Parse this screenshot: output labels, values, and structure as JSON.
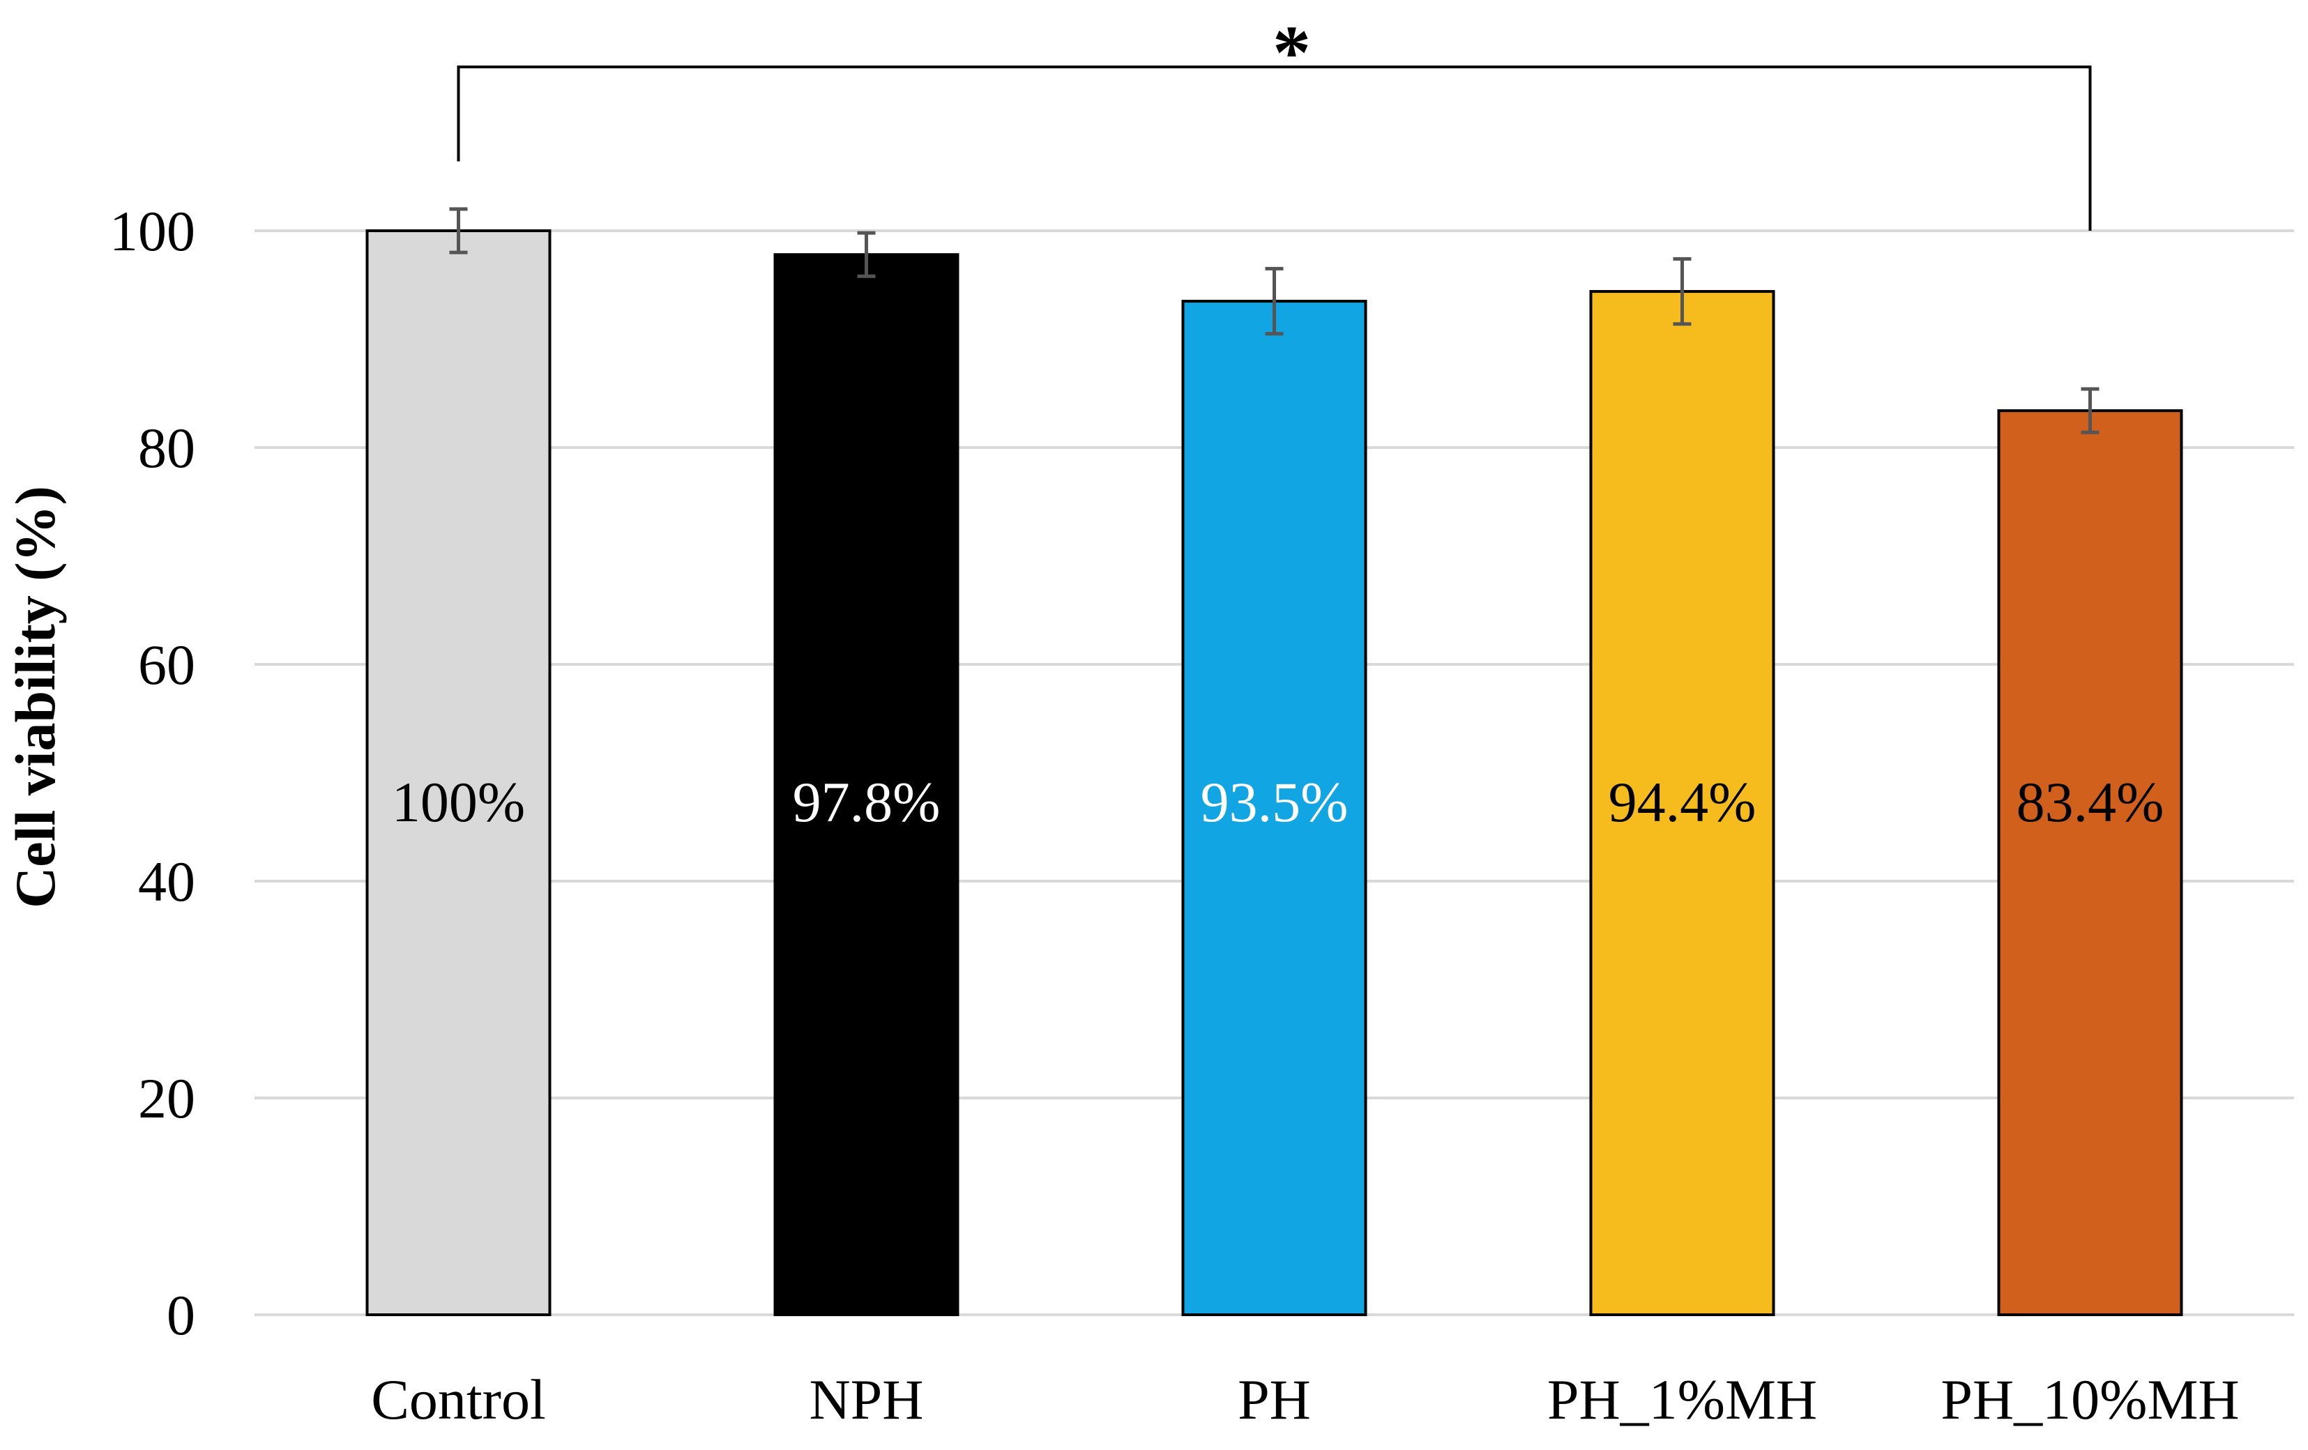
{
  "chart_data": {
    "type": "bar",
    "title": "",
    "xlabel": "",
    "ylabel": "Cell viability (%)",
    "ylim": [
      0,
      100
    ],
    "yticks": [
      0,
      20,
      40,
      60,
      80,
      100
    ],
    "grid": true,
    "categories": [
      "Control",
      "NPH",
      "PH",
      "PH_1%MH",
      "PH_10%MH"
    ],
    "values": [
      100,
      97.8,
      93.5,
      94.4,
      83.4
    ],
    "errors": [
      2.0,
      2.0,
      3.0,
      3.0,
      2.0
    ],
    "data_labels": [
      "100%",
      "97.8%",
      "93.5%",
      "94.4%",
      "83.4%"
    ],
    "colors": [
      "#d9d9d9",
      "#000000",
      "#12a5e3",
      "#f6bb1c",
      "#d0601c"
    ],
    "label_colors": [
      "#000000",
      "#ffffff",
      "#ffffff",
      "#000000",
      "#000000"
    ],
    "significance": {
      "from": "Control",
      "to": "PH_10%MH",
      "label": "*"
    }
  }
}
